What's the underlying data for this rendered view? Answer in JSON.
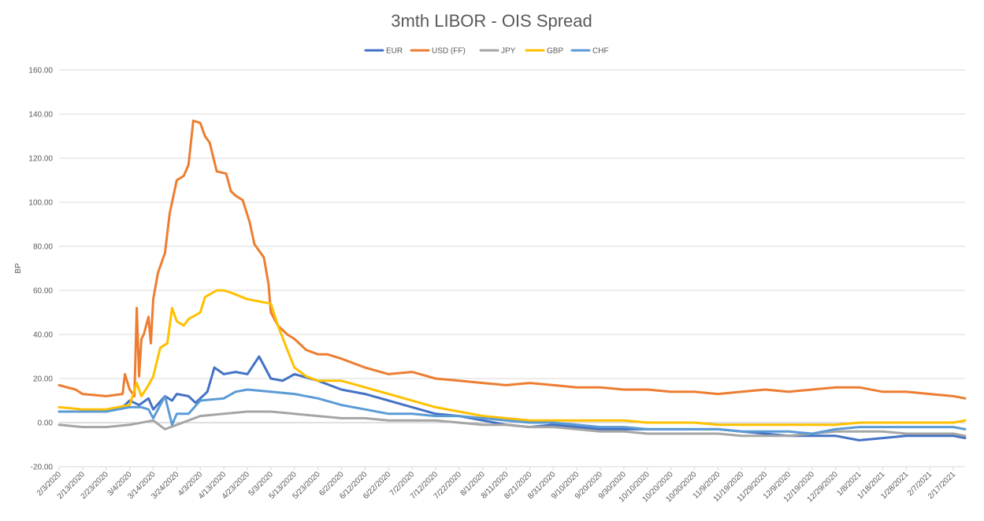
{
  "chart_data": {
    "type": "line",
    "title": "3mth LIBOR - OIS Spread",
    "ylabel": "BP",
    "xlabel": "",
    "ylim": [
      -20,
      160
    ],
    "y_ticks": [
      "-20.00",
      "0.00",
      "20.00",
      "40.00",
      "60.00",
      "80.00",
      "100.00",
      "120.00",
      "140.00",
      "160.00"
    ],
    "x_ticks": [
      "2/3/2020",
      "2/13/2020",
      "2/23/2020",
      "3/4/2020",
      "3/14/2020",
      "3/24/2020",
      "4/3/2020",
      "4/13/2020",
      "4/23/2020",
      "5/3/2020",
      "5/13/2020",
      "5/23/2020",
      "6/2/2020",
      "6/12/2020",
      "6/22/2020",
      "7/2/2020",
      "7/12/2020",
      "7/22/2020",
      "8/1/2020",
      "8/11/2020",
      "8/21/2020",
      "8/31/2020",
      "9/10/2020",
      "9/20/2020",
      "9/30/2020",
      "10/10/2020",
      "10/20/2020",
      "10/30/2020",
      "11/9/2020",
      "11/19/2020",
      "11/29/2020",
      "12/9/2020",
      "12/19/2020",
      "12/29/2020",
      "1/8/2021",
      "1/18/2021",
      "1/28/2021",
      "2/7/2021",
      "2/17/2021"
    ],
    "x_start": "2/3/2020",
    "x_end": "2/22/2021",
    "grid": true,
    "legend_position": "top",
    "series": [
      {
        "name": "EUR",
        "color": "#4472C4",
        "points": [
          [
            "2/3/2020",
            5
          ],
          [
            "2/13/2020",
            5
          ],
          [
            "2/23/2020",
            5
          ],
          [
            "3/1/2020",
            7
          ],
          [
            "3/4/2020",
            10
          ],
          [
            "3/8/2020",
            8
          ],
          [
            "3/12/2020",
            11
          ],
          [
            "3/14/2020",
            6
          ],
          [
            "3/19/2020",
            12
          ],
          [
            "3/22/2020",
            10
          ],
          [
            "3/24/2020",
            13
          ],
          [
            "3/29/2020",
            12
          ],
          [
            "4/1/2020",
            9
          ],
          [
            "4/6/2020",
            14
          ],
          [
            "4/9/2020",
            25
          ],
          [
            "4/13/2020",
            22
          ],
          [
            "4/18/2020",
            23
          ],
          [
            "4/23/2020",
            22
          ],
          [
            "4/28/2020",
            30
          ],
          [
            "5/3/2020",
            20
          ],
          [
            "5/8/2020",
            19
          ],
          [
            "5/13/2020",
            22
          ],
          [
            "5/23/2020",
            19
          ],
          [
            "6/2/2020",
            15
          ],
          [
            "6/12/2020",
            13
          ],
          [
            "6/22/2020",
            10
          ],
          [
            "7/2/2020",
            7
          ],
          [
            "7/12/2020",
            4
          ],
          [
            "7/22/2020",
            3
          ],
          [
            "8/1/2020",
            1
          ],
          [
            "8/11/2020",
            -1
          ],
          [
            "8/21/2020",
            -2
          ],
          [
            "8/31/2020",
            -1
          ],
          [
            "9/10/2020",
            -2
          ],
          [
            "9/20/2020",
            -3
          ],
          [
            "9/30/2020",
            -3
          ],
          [
            "10/10/2020",
            -3
          ],
          [
            "10/20/2020",
            -3
          ],
          [
            "10/30/2020",
            -3
          ],
          [
            "11/9/2020",
            -3
          ],
          [
            "11/19/2020",
            -4
          ],
          [
            "11/29/2020",
            -5
          ],
          [
            "12/9/2020",
            -6
          ],
          [
            "12/19/2020",
            -6
          ],
          [
            "12/29/2020",
            -6
          ],
          [
            "1/8/2021",
            -8
          ],
          [
            "1/18/2021",
            -7
          ],
          [
            "1/28/2021",
            -6
          ],
          [
            "2/7/2021",
            -6
          ],
          [
            "2/17/2021",
            -6
          ],
          [
            "2/22/2021",
            -7
          ]
        ]
      },
      {
        "name": "USD (FF)",
        "color": "#ED7D31",
        "points": [
          [
            "2/3/2020",
            17
          ],
          [
            "2/10/2020",
            15
          ],
          [
            "2/13/2020",
            13
          ],
          [
            "2/23/2020",
            12
          ],
          [
            "3/1/2020",
            13
          ],
          [
            "3/2/2020",
            22
          ],
          [
            "3/4/2020",
            15
          ],
          [
            "3/6/2020",
            12
          ],
          [
            "3/7/2020",
            52
          ],
          [
            "3/8/2020",
            21
          ],
          [
            "3/9/2020",
            38
          ],
          [
            "3/10/2020",
            40
          ],
          [
            "3/12/2020",
            48
          ],
          [
            "3/13/2020",
            36
          ],
          [
            "3/14/2020",
            56
          ],
          [
            "3/16/2020",
            68
          ],
          [
            "3/19/2020",
            77
          ],
          [
            "3/21/2020",
            95
          ],
          [
            "3/24/2020",
            110
          ],
          [
            "3/27/2020",
            112
          ],
          [
            "3/29/2020",
            117
          ],
          [
            "3/31/2020",
            137
          ],
          [
            "4/3/2020",
            136
          ],
          [
            "4/5/2020",
            130
          ],
          [
            "4/7/2020",
            127
          ],
          [
            "4/10/2020",
            114
          ],
          [
            "4/14/2020",
            113
          ],
          [
            "4/16/2020",
            105
          ],
          [
            "4/18/2020",
            103
          ],
          [
            "4/21/2020",
            101
          ],
          [
            "4/24/2020",
            91
          ],
          [
            "4/26/2020",
            81
          ],
          [
            "4/30/2020",
            75
          ],
          [
            "5/2/2020",
            63
          ],
          [
            "5/3/2020",
            50
          ],
          [
            "5/6/2020",
            44
          ],
          [
            "5/10/2020",
            40
          ],
          [
            "5/13/2020",
            38
          ],
          [
            "5/18/2020",
            33
          ],
          [
            "5/23/2020",
            31
          ],
          [
            "5/27/2020",
            31
          ],
          [
            "6/2/2020",
            29
          ],
          [
            "6/12/2020",
            25
          ],
          [
            "6/22/2020",
            22
          ],
          [
            "7/2/2020",
            23
          ],
          [
            "7/12/2020",
            20
          ],
          [
            "7/22/2020",
            19
          ],
          [
            "8/1/2020",
            18
          ],
          [
            "8/11/2020",
            17
          ],
          [
            "8/21/2020",
            18
          ],
          [
            "8/31/2020",
            17
          ],
          [
            "9/10/2020",
            16
          ],
          [
            "9/20/2020",
            16
          ],
          [
            "9/30/2020",
            15
          ],
          [
            "10/10/2020",
            15
          ],
          [
            "10/20/2020",
            14
          ],
          [
            "10/30/2020",
            14
          ],
          [
            "11/9/2020",
            13
          ],
          [
            "11/19/2020",
            14
          ],
          [
            "11/29/2020",
            15
          ],
          [
            "12/9/2020",
            14
          ],
          [
            "12/19/2020",
            15
          ],
          [
            "12/29/2020",
            16
          ],
          [
            "1/8/2021",
            16
          ],
          [
            "1/18/2021",
            14
          ],
          [
            "1/28/2021",
            14
          ],
          [
            "2/7/2021",
            13
          ],
          [
            "2/17/2021",
            12
          ],
          [
            "2/22/2021",
            11
          ]
        ]
      },
      {
        "name": "JPY",
        "color": "#A5A5A5",
        "points": [
          [
            "2/3/2020",
            -1
          ],
          [
            "2/13/2020",
            -2
          ],
          [
            "2/23/2020",
            -2
          ],
          [
            "3/4/2020",
            -1
          ],
          [
            "3/14/2020",
            1
          ],
          [
            "3/19/2020",
            -3
          ],
          [
            "3/24/2020",
            -1
          ],
          [
            "4/3/2020",
            3
          ],
          [
            "4/13/2020",
            4
          ],
          [
            "4/23/2020",
            5
          ],
          [
            "5/3/2020",
            5
          ],
          [
            "5/13/2020",
            4
          ],
          [
            "5/23/2020",
            3
          ],
          [
            "6/2/2020",
            2
          ],
          [
            "6/12/2020",
            2
          ],
          [
            "6/22/2020",
            1
          ],
          [
            "7/2/2020",
            1
          ],
          [
            "7/12/2020",
            1
          ],
          [
            "7/22/2020",
            0
          ],
          [
            "8/1/2020",
            -1
          ],
          [
            "8/11/2020",
            -1
          ],
          [
            "8/21/2020",
            -2
          ],
          [
            "8/31/2020",
            -2
          ],
          [
            "9/10/2020",
            -3
          ],
          [
            "9/20/2020",
            -4
          ],
          [
            "9/30/2020",
            -4
          ],
          [
            "10/10/2020",
            -5
          ],
          [
            "10/20/2020",
            -5
          ],
          [
            "10/30/2020",
            -5
          ],
          [
            "11/9/2020",
            -5
          ],
          [
            "11/19/2020",
            -6
          ],
          [
            "11/29/2020",
            -6
          ],
          [
            "12/9/2020",
            -6
          ],
          [
            "12/19/2020",
            -5
          ],
          [
            "12/29/2020",
            -4
          ],
          [
            "1/8/2021",
            -4
          ],
          [
            "1/18/2021",
            -4
          ],
          [
            "1/28/2021",
            -5
          ],
          [
            "2/7/2021",
            -5
          ],
          [
            "2/17/2021",
            -5
          ],
          [
            "2/22/2021",
            -6
          ]
        ]
      },
      {
        "name": "GBP",
        "color": "#FFC000",
        "points": [
          [
            "2/3/2020",
            7
          ],
          [
            "2/13/2020",
            6
          ],
          [
            "2/23/2020",
            6
          ],
          [
            "3/4/2020",
            8
          ],
          [
            "3/7/2020",
            18
          ],
          [
            "3/9/2020",
            12
          ],
          [
            "3/12/2020",
            17
          ],
          [
            "3/14/2020",
            21
          ],
          [
            "3/17/2020",
            34
          ],
          [
            "3/20/2020",
            36
          ],
          [
            "3/22/2020",
            52
          ],
          [
            "3/24/2020",
            46
          ],
          [
            "3/27/2020",
            44
          ],
          [
            "3/29/2020",
            47
          ],
          [
            "4/3/2020",
            50
          ],
          [
            "4/5/2020",
            57
          ],
          [
            "4/10/2020",
            60
          ],
          [
            "4/13/2020",
            60
          ],
          [
            "4/16/2020",
            59
          ],
          [
            "4/23/2020",
            56
          ],
          [
            "5/3/2020",
            54
          ],
          [
            "5/6/2020",
            44
          ],
          [
            "5/10/2020",
            33
          ],
          [
            "5/13/2020",
            25
          ],
          [
            "5/18/2020",
            21
          ],
          [
            "5/23/2020",
            19
          ],
          [
            "6/2/2020",
            19
          ],
          [
            "6/12/2020",
            16
          ],
          [
            "6/22/2020",
            13
          ],
          [
            "7/2/2020",
            10
          ],
          [
            "7/12/2020",
            7
          ],
          [
            "7/22/2020",
            5
          ],
          [
            "8/1/2020",
            3
          ],
          [
            "8/11/2020",
            2
          ],
          [
            "8/21/2020",
            1
          ],
          [
            "8/31/2020",
            1
          ],
          [
            "9/10/2020",
            1
          ],
          [
            "9/20/2020",
            1
          ],
          [
            "9/30/2020",
            1
          ],
          [
            "10/10/2020",
            0
          ],
          [
            "10/20/2020",
            0
          ],
          [
            "10/30/2020",
            0
          ],
          [
            "11/9/2020",
            -1
          ],
          [
            "11/19/2020",
            -1
          ],
          [
            "11/29/2020",
            -1
          ],
          [
            "12/9/2020",
            -1
          ],
          [
            "12/19/2020",
            -1
          ],
          [
            "12/29/2020",
            -1
          ],
          [
            "1/8/2021",
            0
          ],
          [
            "1/18/2021",
            0
          ],
          [
            "1/28/2021",
            0
          ],
          [
            "2/7/2021",
            0
          ],
          [
            "2/17/2021",
            0
          ],
          [
            "2/22/2021",
            1
          ]
        ]
      },
      {
        "name": "CHF",
        "color": "#5B9BD5",
        "points": [
          [
            "2/3/2020",
            5
          ],
          [
            "2/13/2020",
            5
          ],
          [
            "2/23/2020",
            5
          ],
          [
            "3/4/2020",
            7
          ],
          [
            "3/9/2020",
            7
          ],
          [
            "3/12/2020",
            6
          ],
          [
            "3/14/2020",
            2
          ],
          [
            "3/19/2020",
            12
          ],
          [
            "3/22/2020",
            -1
          ],
          [
            "3/24/2020",
            4
          ],
          [
            "3/29/2020",
            4
          ],
          [
            "4/3/2020",
            10
          ],
          [
            "4/13/2020",
            11
          ],
          [
            "4/18/2020",
            14
          ],
          [
            "4/23/2020",
            15
          ],
          [
            "5/3/2020",
            14
          ],
          [
            "5/13/2020",
            13
          ],
          [
            "5/23/2020",
            11
          ],
          [
            "6/2/2020",
            8
          ],
          [
            "6/12/2020",
            6
          ],
          [
            "6/22/2020",
            4
          ],
          [
            "7/2/2020",
            4
          ],
          [
            "7/12/2020",
            3
          ],
          [
            "7/22/2020",
            3
          ],
          [
            "8/1/2020",
            2
          ],
          [
            "8/11/2020",
            1
          ],
          [
            "8/21/2020",
            0
          ],
          [
            "8/31/2020",
            0
          ],
          [
            "9/10/2020",
            -1
          ],
          [
            "9/20/2020",
            -2
          ],
          [
            "9/30/2020",
            -2
          ],
          [
            "10/10/2020",
            -3
          ],
          [
            "10/20/2020",
            -3
          ],
          [
            "10/30/2020",
            -3
          ],
          [
            "11/9/2020",
            -3
          ],
          [
            "11/19/2020",
            -4
          ],
          [
            "11/29/2020",
            -4
          ],
          [
            "12/9/2020",
            -4
          ],
          [
            "12/19/2020",
            -5
          ],
          [
            "12/29/2020",
            -3
          ],
          [
            "1/8/2021",
            -2
          ],
          [
            "1/18/2021",
            -2
          ],
          [
            "1/28/2021",
            -2
          ],
          [
            "2/7/2021",
            -2
          ],
          [
            "2/17/2021",
            -2
          ],
          [
            "2/22/2021",
            -3
          ]
        ]
      }
    ]
  }
}
